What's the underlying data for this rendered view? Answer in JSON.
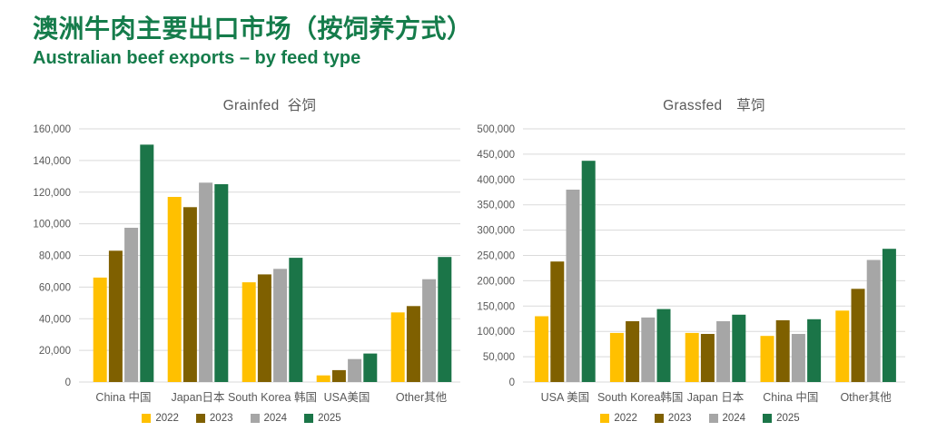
{
  "header": {
    "title_zh": "澳洲牛肉主要出口市场（按饲养方式）",
    "title_en": "Australian beef exports – by feed type",
    "title_color": "#157C4B"
  },
  "style": {
    "brand_green": "#157C4B",
    "gridline_color": "#DADADA",
    "axis_text_color": "#595959",
    "chart_title_color": "#595959",
    "legend_text_color": "#4d4d4d",
    "series_colors": {
      "2022": "#FFC000",
      "2023": "#7F6000",
      "2024": "#A6A6A6",
      "2025": "#1B7548"
    }
  },
  "chart_data": [
    {
      "type": "bar",
      "title": "Grainfed  谷饲",
      "categories": [
        "China 中国",
        "Japan日本",
        "South Korea 韩国",
        "USA美国",
        "Other其他"
      ],
      "series": [
        {
          "name": "2022",
          "color": "#FFC000",
          "values": [
            66000,
            117000,
            63000,
            4200,
            44000
          ]
        },
        {
          "name": "2023",
          "color": "#7F6000",
          "values": [
            83000,
            110500,
            68000,
            7500,
            48000
          ]
        },
        {
          "name": "2024",
          "color": "#A6A6A6",
          "values": [
            97500,
            126000,
            71500,
            14500,
            65000
          ]
        },
        {
          "name": "2025",
          "color": "#1B7548",
          "values": [
            150000,
            125000,
            78500,
            18000,
            79000
          ]
        }
      ],
      "ylabel": "",
      "xlabel": "",
      "ylim": [
        0,
        160000
      ],
      "ytick_step": 20000,
      "ytick_labels": [
        "0",
        "20,000",
        "40,000",
        "60,000",
        "80,000",
        "100,000",
        "120,000",
        "140,000",
        "160,000"
      ],
      "grid": true,
      "legend_position": "bottom",
      "legend_labels": [
        "2022",
        "2023",
        "2024",
        "2025"
      ]
    },
    {
      "type": "bar",
      "title": "Grassfed　草饲",
      "categories": [
        "USA 美国",
        "South Korea韩国",
        "Japan 日本",
        "China 中国",
        "Other其他"
      ],
      "series": [
        {
          "name": "2022",
          "color": "#FFC000",
          "values": [
            130000,
            97000,
            97000,
            91000,
            141000
          ]
        },
        {
          "name": "2023",
          "color": "#7F6000",
          "values": [
            238000,
            120000,
            95000,
            122000,
            184000
          ]
        },
        {
          "name": "2024",
          "color": "#A6A6A6",
          "values": [
            380000,
            127500,
            120000,
            95000,
            241000
          ]
        },
        {
          "name": "2025",
          "color": "#1B7548",
          "values": [
            437000,
            144000,
            133000,
            124000,
            263000
          ]
        }
      ],
      "ylabel": "",
      "xlabel": "",
      "ylim": [
        0,
        500000
      ],
      "ytick_step": 50000,
      "ytick_labels": [
        "0",
        "50,000",
        "100,000",
        "150,000",
        "200,000",
        "250,000",
        "300,000",
        "350,000",
        "400,000",
        "450,000",
        "500,000"
      ],
      "grid": true,
      "legend_position": "bottom",
      "legend_labels": [
        "2022",
        "2023",
        "2024",
        "2025"
      ]
    }
  ]
}
